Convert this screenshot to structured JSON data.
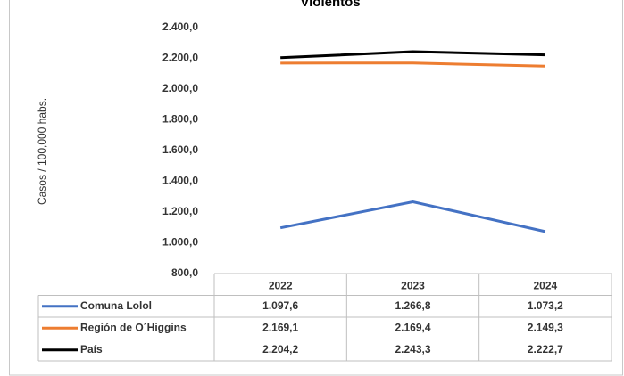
{
  "chart_data": {
    "type": "line",
    "title": "Violentos",
    "y_label": "Casos / 100,000 habs.",
    "categories": [
      "2022",
      "2023",
      "2024"
    ],
    "series": [
      {
        "name": "Comuna Lolol",
        "color": "#4472c4",
        "values": [
          1097.6,
          1266.8,
          1073.2
        ],
        "value_labels": [
          "1.097,6",
          "1.266,8",
          "1.073,2"
        ]
      },
      {
        "name": "Región de O´Higgins",
        "color": "#ed7d31",
        "values": [
          2169.1,
          2169.4,
          2149.3
        ],
        "value_labels": [
          "2.169,1",
          "2.169,4",
          "2.149,3"
        ]
      },
      {
        "name": "País",
        "color": "#000000",
        "values": [
          2204.2,
          2243.3,
          2222.7
        ],
        "value_labels": [
          "2.204,2",
          "2.243,3",
          "2.222,7"
        ]
      }
    ],
    "ylim": [
      800,
      2400
    ],
    "yticks": [
      {
        "value": 800,
        "label": "800,0"
      },
      {
        "value": 1000,
        "label": "1.000,0"
      },
      {
        "value": 1200,
        "label": "1.200,0"
      },
      {
        "value": 1400,
        "label": "1.400,0"
      },
      {
        "value": 1600,
        "label": "1.600,0"
      },
      {
        "value": 1800,
        "label": "1.800,0"
      },
      {
        "value": 2000,
        "label": "2.000,0"
      },
      {
        "value": 2200,
        "label": "2.200,0"
      },
      {
        "value": 2400,
        "label": "2.400,0"
      }
    ]
  }
}
